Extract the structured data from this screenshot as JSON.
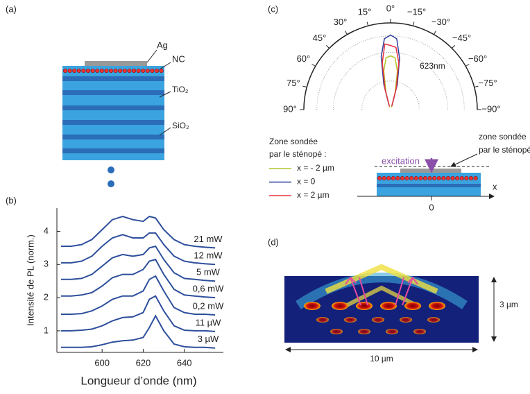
{
  "panels": {
    "a": {
      "label": "(a)",
      "ag": "Ag",
      "nc": "NC",
      "tio2": "TiO₂",
      "sio2": "SiO₂"
    },
    "c": {
      "label": "(c)",
      "wavelength": "623nm",
      "legend_title": [
        "Zone sondée",
        "par le sténopé :"
      ],
      "excitation": "excitation",
      "zone": [
        "zone sondée",
        "par le sténopé"
      ],
      "axis_x": "x",
      "axis_zero": "0"
    },
    "d": {
      "label": "(d)",
      "height": "3 µm",
      "width": "10 µm"
    }
  },
  "chart_data": [
    {
      "type": "line",
      "panel_label": "(b)",
      "xlabel": "Longueur d’onde (nm)",
      "ylabel": "Intensité de PL (norm.)",
      "x": [
        580,
        585,
        590,
        595,
        600,
        605,
        610,
        615,
        620,
        623,
        626,
        630,
        635,
        640,
        645,
        650,
        655
      ],
      "xlim": [
        578,
        659
      ],
      "xticks": [
        600,
        620,
        640
      ],
      "ylim": [
        0.35,
        4.7
      ],
      "yticks": [
        1,
        2,
        3,
        4
      ],
      "series": [
        {
          "name": "21 mW",
          "color": "#2e4f9c",
          "values": [
            3.55,
            3.55,
            3.6,
            3.75,
            4.05,
            4.35,
            4.45,
            4.35,
            4.3,
            4.45,
            4.4,
            4.05,
            3.75,
            3.6,
            3.55,
            3.52,
            3.5
          ]
        },
        {
          "name": "12 mW",
          "color": "#2e4f9c",
          "values": [
            3.05,
            3.05,
            3.1,
            3.25,
            3.55,
            3.8,
            3.9,
            3.8,
            3.8,
            3.95,
            3.95,
            3.6,
            3.25,
            3.1,
            3.05,
            3.02,
            3.0
          ]
        },
        {
          "name": "5 mW",
          "color": "#2e4f9c",
          "values": [
            2.55,
            2.55,
            2.58,
            2.7,
            2.95,
            3.2,
            3.3,
            3.25,
            3.3,
            3.5,
            3.55,
            3.15,
            2.75,
            2.58,
            2.55,
            2.52,
            2.5
          ]
        },
        {
          "name": "0,6 mW",
          "color": "#2e4f9c",
          "values": [
            2.05,
            2.05,
            2.08,
            2.15,
            2.35,
            2.6,
            2.7,
            2.7,
            2.85,
            3.1,
            3.15,
            2.7,
            2.25,
            2.08,
            2.05,
            2.02,
            2.0
          ]
        },
        {
          "name": "0,2 mW",
          "color": "#2e4f9c",
          "values": [
            1.5,
            1.5,
            1.52,
            1.6,
            1.75,
            1.95,
            2.05,
            2.05,
            2.2,
            2.55,
            2.65,
            2.2,
            1.7,
            1.55,
            1.5,
            1.5,
            1.48
          ]
        },
        {
          "name": "11 µW",
          "color": "#2e4f9c",
          "values": [
            1.0,
            1.0,
            1.02,
            1.05,
            1.15,
            1.3,
            1.4,
            1.42,
            1.55,
            1.95,
            2.05,
            1.6,
            1.15,
            1.02,
            1.0,
            1.0,
            0.98
          ]
        },
        {
          "name": "3 µW",
          "color": "#2e4f9c",
          "values": [
            0.5,
            0.5,
            0.5,
            0.52,
            0.58,
            0.66,
            0.7,
            0.72,
            0.8,
            1.1,
            1.45,
            1.0,
            0.6,
            0.52,
            0.5,
            0.5,
            0.48
          ]
        }
      ]
    },
    {
      "type": "polar",
      "theta": [
        -20,
        -15,
        -10,
        -5,
        0,
        5,
        10,
        15,
        20
      ],
      "rlim": [
        0,
        1
      ],
      "rticks": [
        0.33,
        0.66,
        0.85
      ],
      "thetaticks": [
        {
          "value": 90,
          "label": "90°"
        },
        {
          "value": 75,
          "label": "75°"
        },
        {
          "value": 60,
          "label": "60°"
        },
        {
          "value": 45,
          "label": "45°"
        },
        {
          "value": 30,
          "label": "30°"
        },
        {
          "value": 15,
          "label": "15°"
        },
        {
          "value": 0,
          "label": "0°"
        },
        {
          "value": -15,
          "label": "−15°"
        },
        {
          "value": -30,
          "label": "−30°"
        },
        {
          "value": -45,
          "label": "−45°"
        },
        {
          "value": -60,
          "label": "−60°"
        },
        {
          "value": -75,
          "label": "−75°"
        },
        {
          "value": -90,
          "label": "−90°"
        }
      ],
      "series": [
        {
          "name": "x = - 2 µm",
          "color": "#b3c42c",
          "values": [
            0.03,
            0.2,
            0.45,
            0.6,
            0.62,
            0.6,
            0.45,
            0.2,
            0.03
          ]
        },
        {
          "name": "x = 0",
          "color": "#2b3c9c",
          "values": [
            0.05,
            0.3,
            0.6,
            0.82,
            0.86,
            0.82,
            0.62,
            0.3,
            0.05
          ]
        },
        {
          "name": "x = 2 µm",
          "color": "#e8323c",
          "values": [
            0.04,
            0.25,
            0.55,
            0.72,
            0.74,
            0.76,
            0.55,
            0.25,
            0.04
          ]
        }
      ]
    }
  ]
}
